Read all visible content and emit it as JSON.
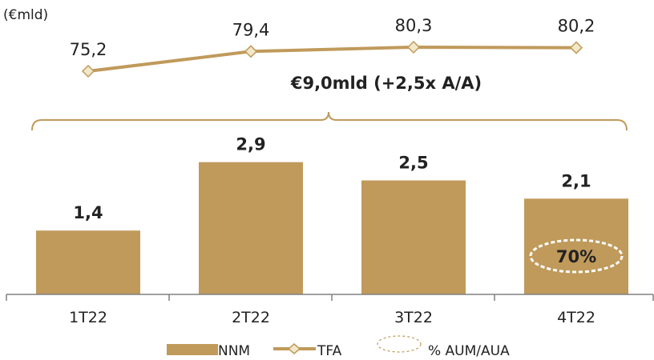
{
  "chart_data": {
    "type": "bar",
    "unit_label": "(€mld)",
    "categories": [
      "1T22",
      "2T22",
      "3T22",
      "4T22"
    ],
    "bar_labels": [
      "1,4",
      "2,9",
      "2,5",
      "2,1"
    ],
    "line_labels": [
      "75,2",
      "79,4",
      "80,3",
      "80,2"
    ],
    "series": [
      {
        "name": "NNM",
        "type": "bar",
        "values": [
          1.4,
          2.9,
          2.5,
          2.1
        ],
        "color": "#C09A5B"
      },
      {
        "name": "TFA",
        "type": "line",
        "values": [
          75.2,
          79.4,
          80.3,
          80.2
        ],
        "color": "#C09A5B",
        "marker": "diamond"
      }
    ],
    "bracket_annotation": "€9,0mld (+2,5x A/A)",
    "oval_annotation": {
      "category": "4T22",
      "text": "70%"
    },
    "legend": {
      "placement": "bottom",
      "items": [
        {
          "label": "NNM",
          "symbol": "bar"
        },
        {
          "label": "TFA",
          "symbol": "line-diamond"
        },
        {
          "label": "% AUM/AUA",
          "symbol": "dashed-oval"
        }
      ]
    },
    "colors": {
      "bar": "#C09A5B",
      "line": "#C09A5B",
      "marker_fill": "#F2E8C9",
      "text": "#222222",
      "axis": "#808080"
    }
  }
}
